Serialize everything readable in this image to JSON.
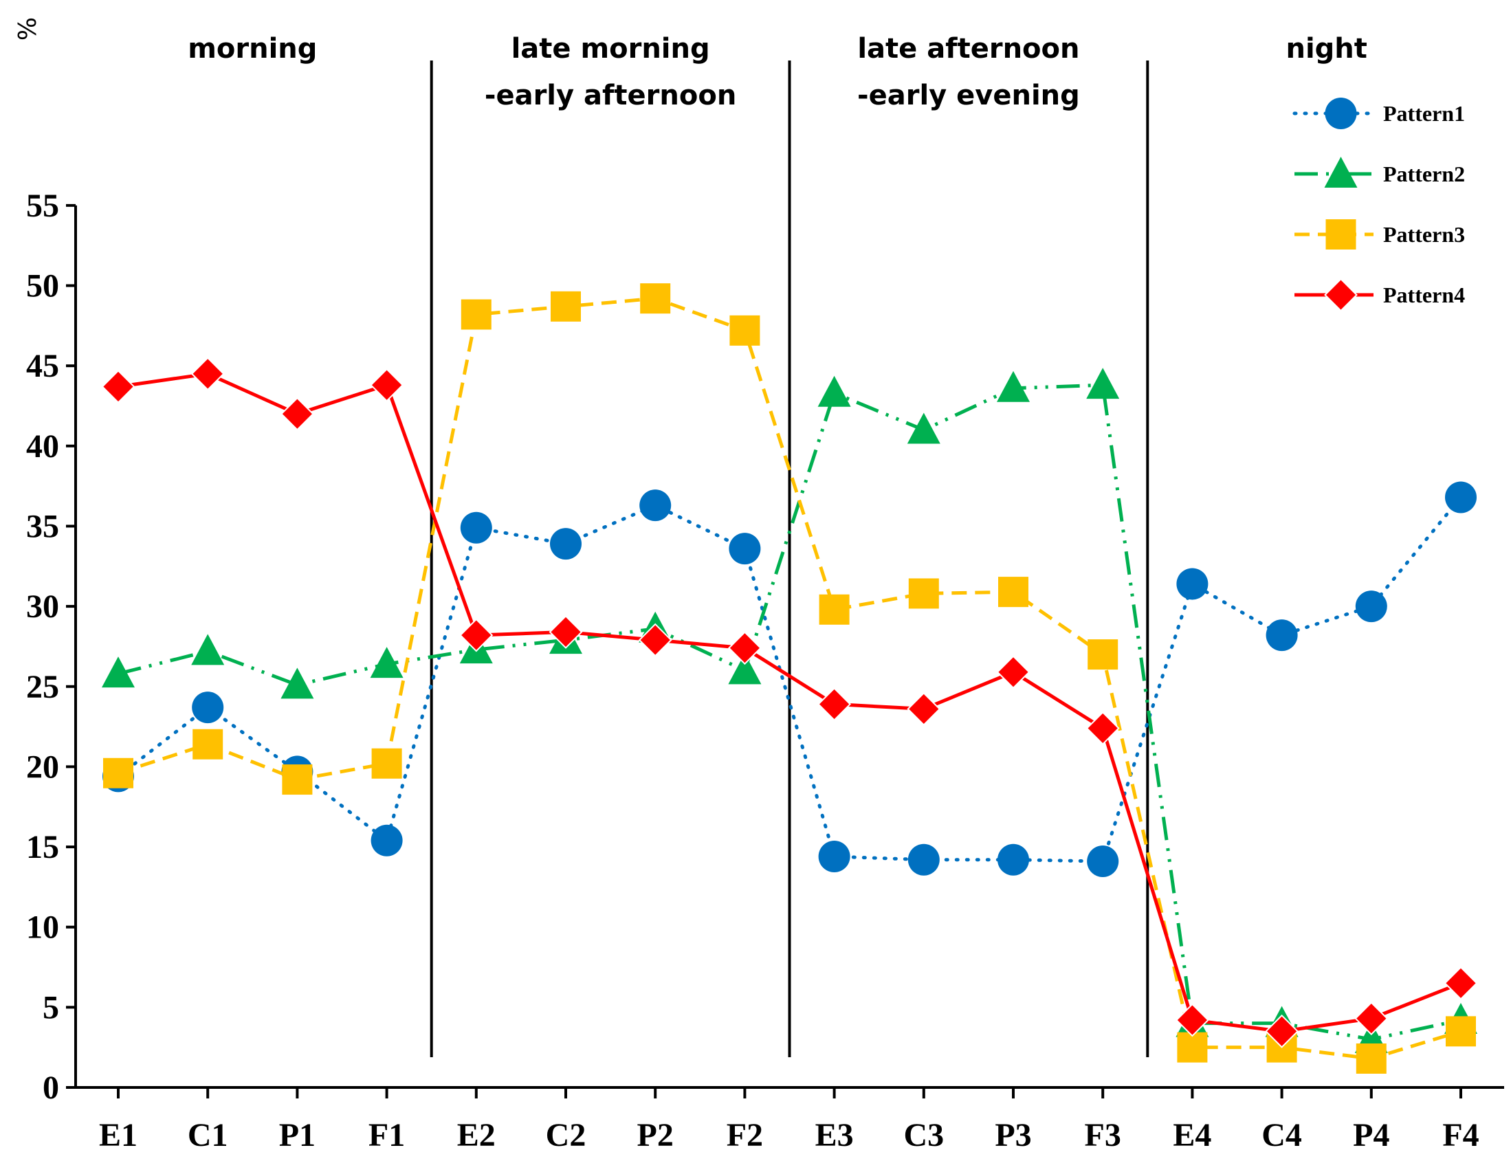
{
  "chart_data": {
    "type": "line",
    "ylabel": "%",
    "ylim": [
      0,
      55
    ],
    "yticks": [
      0,
      5,
      10,
      15,
      20,
      25,
      30,
      35,
      40,
      45,
      50,
      55
    ],
    "categories": [
      "E1",
      "C1",
      "P1",
      "F1",
      "E2",
      "C2",
      "P2",
      "F2",
      "E3",
      "C3",
      "P3",
      "F3",
      "E4",
      "C4",
      "P4",
      "F4"
    ],
    "periods": [
      {
        "lines": [
          "morning"
        ],
        "from": 0,
        "to": 3
      },
      {
        "lines": [
          "late morning",
          "-early afternoon"
        ],
        "from": 4,
        "to": 7
      },
      {
        "lines": [
          "late afternoon",
          "-early evening"
        ],
        "from": 8,
        "to": 11
      },
      {
        "lines": [
          "night"
        ],
        "from": 12,
        "to": 15
      }
    ],
    "legend_position": "top-right",
    "series": [
      {
        "name": "Pattern1",
        "color": "#0070C0",
        "marker": "circle",
        "dash": "dotted",
        "values": [
          19.4,
          23.7,
          19.7,
          15.4,
          34.9,
          33.9,
          36.3,
          33.6,
          14.4,
          14.2,
          14.2,
          14.1,
          31.4,
          28.2,
          30.0,
          36.8
        ]
      },
      {
        "name": "Pattern2",
        "color": "#00B050",
        "marker": "triangle",
        "dash": "dashdotdot",
        "values": [
          25.8,
          27.2,
          25.1,
          26.4,
          27.3,
          27.9,
          28.6,
          26.0,
          43.3,
          41.0,
          43.6,
          43.8,
          4.0,
          4.0,
          3.0,
          4.2
        ]
      },
      {
        "name": "Pattern3",
        "color": "#FFC000",
        "marker": "square",
        "dash": "dashed",
        "values": [
          19.6,
          21.4,
          19.2,
          20.2,
          48.2,
          48.7,
          49.2,
          47.2,
          29.8,
          30.8,
          30.9,
          27.0,
          2.5,
          2.5,
          1.8,
          3.5
        ]
      },
      {
        "name": "Pattern4",
        "color": "#FF0000",
        "marker": "diamond",
        "dash": "solid",
        "values": [
          43.7,
          44.5,
          42.0,
          43.8,
          28.2,
          28.4,
          27.9,
          27.4,
          23.9,
          23.6,
          25.9,
          22.4,
          4.2,
          3.5,
          4.3,
          6.5
        ]
      }
    ]
  }
}
